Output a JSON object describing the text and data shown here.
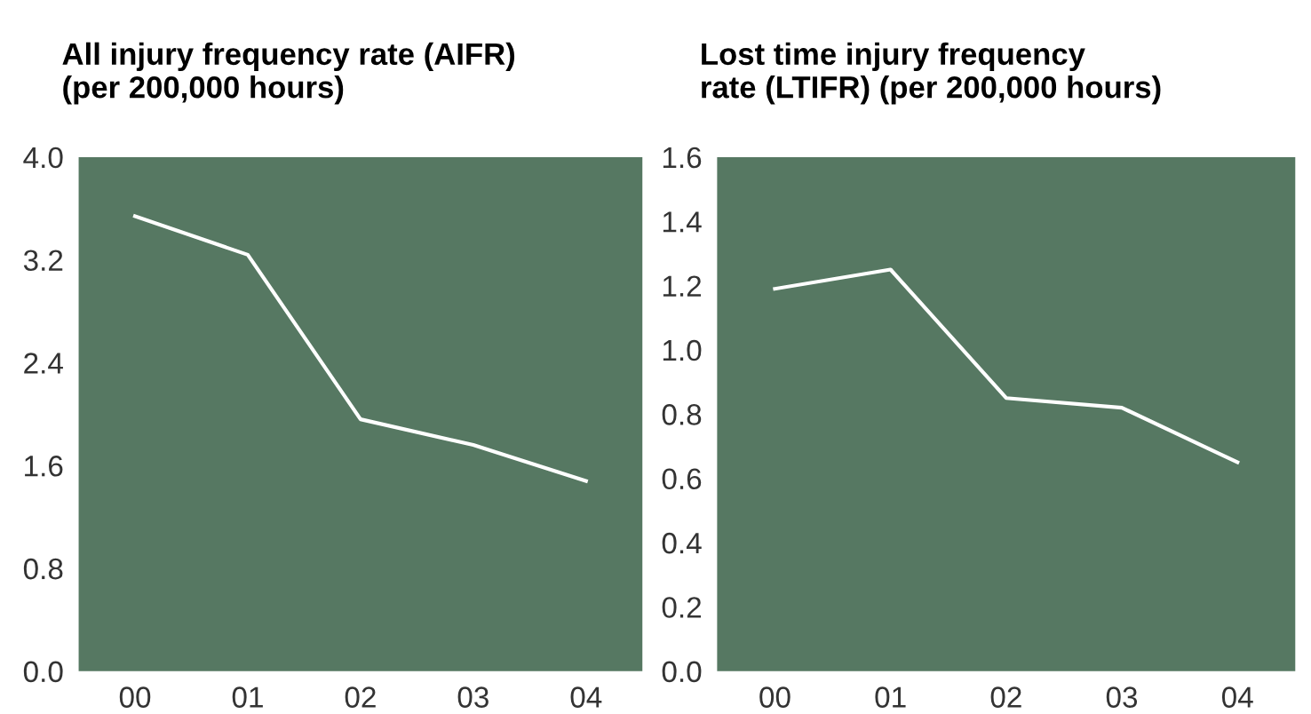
{
  "chart_data": [
    {
      "type": "line",
      "title": "All injury frequency rate (AIFR)\n(per 200,000 hours)",
      "categories": [
        "00",
        "01",
        "02",
        "03",
        "04"
      ],
      "series": [
        {
          "color": "#ffffff",
          "values": [
            3.54,
            3.24,
            1.96,
            1.76,
            1.48
          ]
        }
      ],
      "ylim": [
        0,
        4
      ],
      "yticks": [
        {
          "value": 0,
          "label": "0.0"
        },
        {
          "value": 0.8,
          "label": "0.8"
        },
        {
          "value": 1.6,
          "label": "1.6"
        },
        {
          "value": 2.4,
          "label": "2.4"
        },
        {
          "value": 3.2,
          "label": "3.2"
        },
        {
          "value": 4,
          "label": "4.0"
        }
      ],
      "grid": false,
      "legend": false
    },
    {
      "type": "line",
      "title": "Lost time injury frequency\nrate (LTIFR) (per 200,000 hours)",
      "categories": [
        "00",
        "01",
        "02",
        "03",
        "04"
      ],
      "series": [
        {
          "color": "#ffffff",
          "values": [
            1.19,
            1.25,
            0.85,
            0.82,
            0.65
          ]
        }
      ],
      "ylim": [
        0,
        1.6
      ],
      "yticks": [
        {
          "value": 0,
          "label": "0.0"
        },
        {
          "value": 0.2,
          "label": "0.2"
        },
        {
          "value": 0.4,
          "label": "0.4"
        },
        {
          "value": 0.6,
          "label": "0.6"
        },
        {
          "value": 0.8,
          "label": "0.8"
        },
        {
          "value": 1.0,
          "label": "1.0"
        },
        {
          "value": 1.2,
          "label": "1.2"
        },
        {
          "value": 1.4,
          "label": "1.4"
        },
        {
          "value": 1.6,
          "label": "1.6"
        }
      ],
      "grid": false,
      "legend": false
    }
  ]
}
